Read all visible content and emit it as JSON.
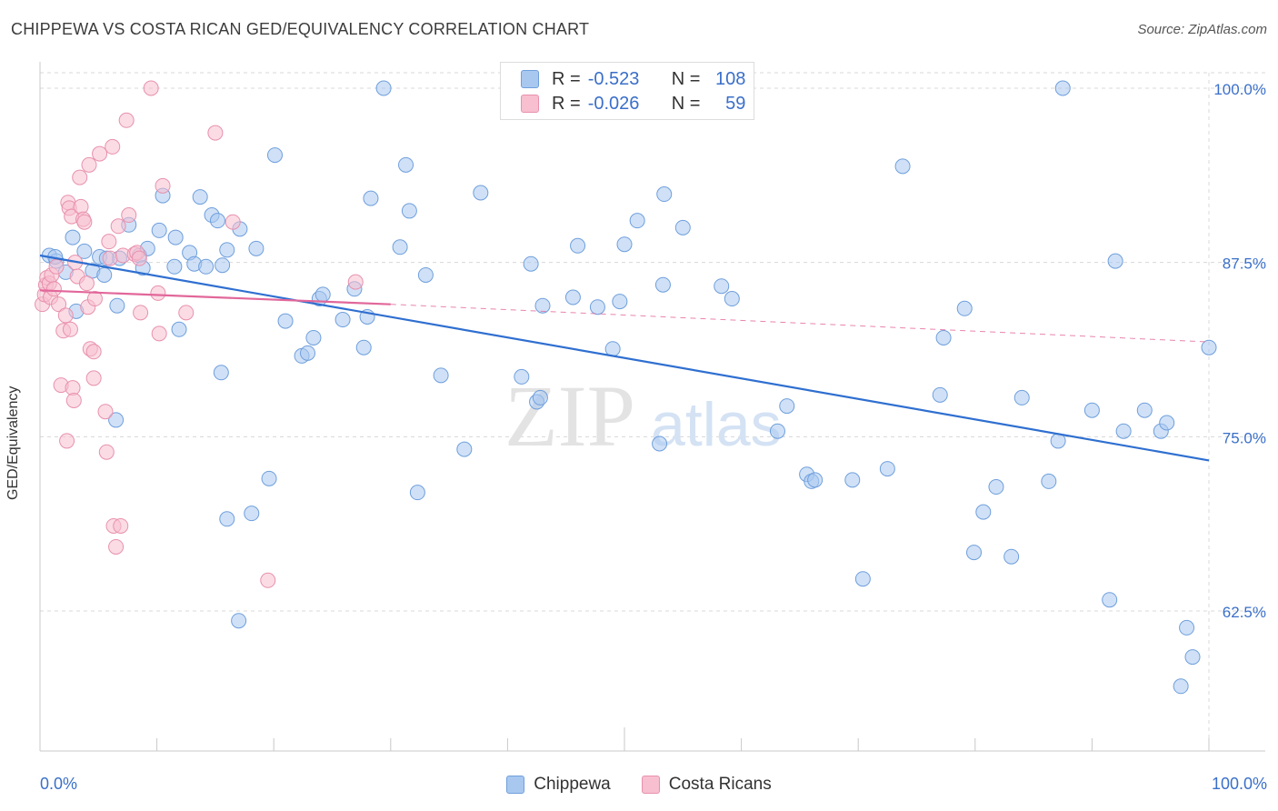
{
  "title": "CHIPPEWA VS COSTA RICAN GED/EQUIVALENCY CORRELATION CHART",
  "source": "Source: ZipAtlas.com",
  "watermark": {
    "zip": "ZIP",
    "atlas": "atlas"
  },
  "legend": {
    "r_label": "R =",
    "n_label": "N =",
    "rows": [
      {
        "r": "-0.523",
        "n": "108",
        "color": "#a9c8f0",
        "border": "#6f9fdc"
      },
      {
        "r": "-0.026",
        "n": "59",
        "color": "#f7bfd0",
        "border": "#e891ad"
      }
    ]
  },
  "x_axis": {
    "left_label": "0.0%",
    "right_label": "100.0%"
  },
  "chart_data": {
    "type": "scatter",
    "ylabel": "GED/Equivalency",
    "xlim": [
      0,
      100
    ],
    "ylim": [
      53,
      101.5
    ],
    "y_ticks": [
      100.0,
      87.5,
      75.0,
      62.5
    ],
    "y_tick_labels": [
      "100.0%",
      "87.5%",
      "75.0%",
      "62.5%"
    ],
    "grid": true,
    "legend_position": "top-center",
    "series": [
      {
        "name": "Chippewa",
        "color": "#a9c8f0",
        "stroke": "#6f9fdc",
        "trend": {
          "x0": 0,
          "y0": 88.0,
          "x1": 100,
          "y1": 73.3,
          "color": "#2f6fd0"
        },
        "points": [
          [
            0.8,
            88.0
          ],
          [
            1.4,
            87.6
          ],
          [
            2.2,
            86.8
          ],
          [
            2.8,
            89.3
          ],
          [
            3.8,
            88.3
          ],
          [
            4.5,
            86.9
          ],
          [
            5.1,
            87.9
          ],
          [
            5.5,
            86.6
          ],
          [
            3.1,
            84.0
          ],
          [
            6.6,
            84.4
          ],
          [
            6.8,
            87.8
          ],
          [
            7.6,
            90.2
          ],
          [
            8.5,
            88.0
          ],
          [
            8.8,
            87.1
          ],
          [
            9.2,
            88.5
          ],
          [
            10.2,
            89.8
          ],
          [
            10.5,
            92.3
          ],
          [
            11.5,
            87.2
          ],
          [
            11.6,
            89.3
          ],
          [
            11.9,
            82.7
          ],
          [
            12.8,
            88.2
          ],
          [
            13.2,
            87.4
          ],
          [
            13.7,
            92.2
          ],
          [
            14.2,
            87.2
          ],
          [
            14.7,
            90.9
          ],
          [
            15.2,
            90.5
          ],
          [
            15.6,
            87.3
          ],
          [
            16.0,
            88.4
          ],
          [
            17.1,
            89.9
          ],
          [
            18.5,
            88.5
          ],
          [
            6.5,
            76.2
          ],
          [
            15.5,
            79.6
          ],
          [
            16.0,
            69.1
          ],
          [
            17.0,
            61.8
          ],
          [
            18.1,
            69.5
          ],
          [
            19.6,
            72.0
          ],
          [
            20.1,
            95.2
          ],
          [
            21.0,
            83.3
          ],
          [
            22.4,
            80.8
          ],
          [
            22.9,
            81.0
          ],
          [
            23.4,
            82.1
          ],
          [
            23.9,
            84.9
          ],
          [
            24.2,
            85.2
          ],
          [
            25.9,
            83.4
          ],
          [
            26.9,
            85.6
          ],
          [
            27.7,
            81.4
          ],
          [
            28.0,
            83.6
          ],
          [
            28.3,
            92.1
          ],
          [
            29.4,
            100.0
          ],
          [
            30.8,
            88.6
          ],
          [
            31.3,
            94.5
          ],
          [
            31.6,
            91.2
          ],
          [
            32.3,
            71.0
          ],
          [
            33.0,
            86.6
          ],
          [
            34.3,
            79.4
          ],
          [
            36.3,
            74.1
          ],
          [
            37.7,
            92.5
          ],
          [
            41.2,
            79.3
          ],
          [
            42.0,
            87.4
          ],
          [
            42.5,
            77.5
          ],
          [
            42.8,
            77.8
          ],
          [
            43.0,
            84.4
          ],
          [
            45.6,
            85.0
          ],
          [
            46.0,
            88.7
          ],
          [
            47.7,
            84.3
          ],
          [
            49.0,
            81.3
          ],
          [
            49.6,
            84.7
          ],
          [
            50.0,
            88.8
          ],
          [
            51.1,
            90.5
          ],
          [
            53.0,
            74.5
          ],
          [
            53.3,
            85.9
          ],
          [
            53.4,
            92.4
          ],
          [
            55.0,
            90.0
          ],
          [
            58.3,
            85.8
          ],
          [
            59.2,
            84.9
          ],
          [
            63.1,
            75.4
          ],
          [
            63.9,
            77.2
          ],
          [
            65.6,
            72.3
          ],
          [
            66.0,
            71.8
          ],
          [
            66.3,
            71.9
          ],
          [
            69.5,
            71.9
          ],
          [
            70.4,
            64.8
          ],
          [
            72.5,
            72.7
          ],
          [
            73.8,
            94.4
          ],
          [
            77.0,
            78.0
          ],
          [
            77.3,
            82.1
          ],
          [
            79.1,
            84.2
          ],
          [
            79.9,
            66.7
          ],
          [
            80.7,
            69.6
          ],
          [
            81.8,
            71.4
          ],
          [
            83.1,
            66.4
          ],
          [
            84.0,
            77.8
          ],
          [
            86.3,
            71.8
          ],
          [
            87.1,
            74.7
          ],
          [
            87.5,
            100.0
          ],
          [
            90.0,
            76.9
          ],
          [
            91.5,
            63.3
          ],
          [
            92.0,
            87.6
          ],
          [
            92.7,
            75.4
          ],
          [
            94.5,
            76.9
          ],
          [
            95.9,
            75.4
          ],
          [
            96.4,
            76.0
          ],
          [
            97.6,
            57.1
          ],
          [
            98.1,
            61.3
          ],
          [
            98.6,
            59.2
          ],
          [
            100.0,
            81.4
          ],
          [
            1.3,
            87.9
          ],
          [
            5.7,
            87.8
          ]
        ]
      },
      {
        "name": "Costa Ricans",
        "color": "#f7bfd0",
        "stroke": "#e891ad",
        "trend": {
          "x0": 0,
          "y0": 85.5,
          "x1": 30,
          "y1": 84.5,
          "dash_to_x": 100,
          "dash_to_y": 81.8,
          "color": "#e2679a"
        },
        "points": [
          [
            0.2,
            84.5
          ],
          [
            0.4,
            85.2
          ],
          [
            0.5,
            85.9
          ],
          [
            0.6,
            86.4
          ],
          [
            0.8,
            86.0
          ],
          [
            0.9,
            85.0
          ],
          [
            1.0,
            86.6
          ],
          [
            1.2,
            85.6
          ],
          [
            1.4,
            87.2
          ],
          [
            1.6,
            84.5
          ],
          [
            1.8,
            78.7
          ],
          [
            2.0,
            82.6
          ],
          [
            2.2,
            83.7
          ],
          [
            2.3,
            74.7
          ],
          [
            2.4,
            91.8
          ],
          [
            2.5,
            91.4
          ],
          [
            2.6,
            82.7
          ],
          [
            2.7,
            90.8
          ],
          [
            2.8,
            78.5
          ],
          [
            2.9,
            77.6
          ],
          [
            3.0,
            87.5
          ],
          [
            3.2,
            86.5
          ],
          [
            3.4,
            93.6
          ],
          [
            3.5,
            91.5
          ],
          [
            3.7,
            90.6
          ],
          [
            3.8,
            90.4
          ],
          [
            4.0,
            86.0
          ],
          [
            4.1,
            84.3
          ],
          [
            4.2,
            94.5
          ],
          [
            4.3,
            81.3
          ],
          [
            4.6,
            81.1
          ],
          [
            4.6,
            79.2
          ],
          [
            4.7,
            84.9
          ],
          [
            5.1,
            95.3
          ],
          [
            5.6,
            76.8
          ],
          [
            5.7,
            73.9
          ],
          [
            5.9,
            89.0
          ],
          [
            6.0,
            87.8
          ],
          [
            6.2,
            95.8
          ],
          [
            6.3,
            68.6
          ],
          [
            6.5,
            67.1
          ],
          [
            6.7,
            90.1
          ],
          [
            6.9,
            68.6
          ],
          [
            7.1,
            88.0
          ],
          [
            7.4,
            97.7
          ],
          [
            7.6,
            90.9
          ],
          [
            8.1,
            88.1
          ],
          [
            8.3,
            88.2
          ],
          [
            8.5,
            87.8
          ],
          [
            8.6,
            83.9
          ],
          [
            9.5,
            100.0
          ],
          [
            10.1,
            85.3
          ],
          [
            10.2,
            82.4
          ],
          [
            10.5,
            93.0
          ],
          [
            12.5,
            83.9
          ],
          [
            15.0,
            96.8
          ],
          [
            16.5,
            90.4
          ],
          [
            19.5,
            64.7
          ],
          [
            27.0,
            86.1
          ]
        ]
      }
    ]
  }
}
